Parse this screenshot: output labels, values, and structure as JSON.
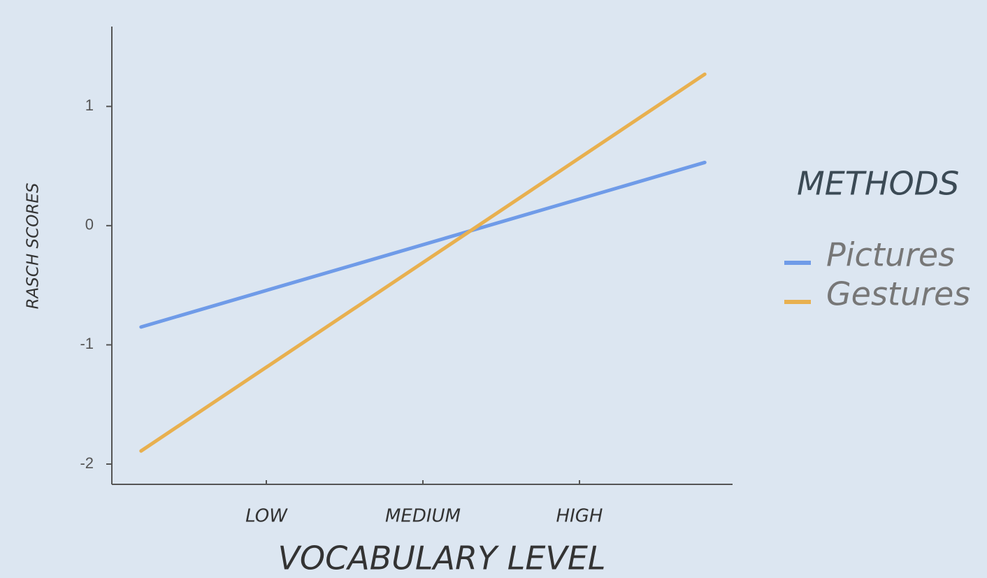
{
  "chart_data": {
    "type": "line",
    "x_label": "VOCABULARY LEVEL",
    "y_label": "RASCH SCORES",
    "x": [
      0.2,
      3.8
    ],
    "xlim": [
      0,
      4
    ],
    "xticks": [
      {
        "value": 1,
        "label": "LOW"
      },
      {
        "value": 2,
        "label": "MEDIUM"
      },
      {
        "value": 3,
        "label": "HIGH"
      }
    ],
    "ylim": [
      -2.17,
      1.67
    ],
    "yticks": [
      -2,
      -1,
      0,
      1
    ],
    "legend_title": "METHODS",
    "legend_position": "right",
    "series": [
      {
        "name": "Pictures",
        "color": "#6f9be8",
        "values": [
          -0.85,
          0.53
        ]
      },
      {
        "name": "Gestures",
        "color": "#e8b04f",
        "values": [
          -1.89,
          1.27
        ]
      }
    ]
  }
}
